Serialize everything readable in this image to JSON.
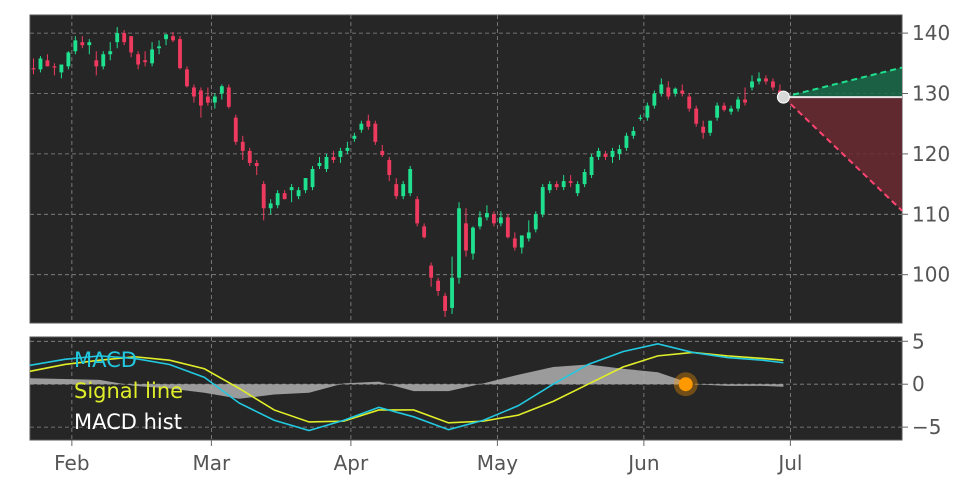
{
  "chart_data": [
    {
      "type": "candlestick",
      "ylim": [
        92,
        143
      ],
      "ytick_values": [
        100,
        110,
        120,
        130,
        140
      ],
      "ytick_labels": [
        "100",
        "110",
        "120",
        "130",
        "140"
      ],
      "xlim": [
        0,
        125
      ],
      "xtick_positions": [
        6,
        26,
        46,
        67,
        88,
        109
      ],
      "xtick_labels": [
        "Feb",
        "Mar",
        "Apr",
        "May",
        "Jun",
        "Jul"
      ],
      "grid": true,
      "colors": {
        "up": "#1fe08e",
        "down": "#ee3a5e",
        "background": "#262626",
        "grid": "#8a8a8a"
      },
      "candles": [
        [
          0,
          134.2,
          135.8,
          133.2,
          134.0
        ],
        [
          1,
          134.0,
          136.2,
          133.5,
          135.8
        ],
        [
          2,
          135.5,
          136.5,
          134.5,
          134.5
        ],
        [
          3,
          134.5,
          135.0,
          133.0,
          134.3
        ],
        [
          4,
          133.5,
          134.8,
          132.5,
          134.8
        ],
        [
          5,
          134.5,
          137.0,
          134.0,
          136.8
        ],
        [
          6,
          137.0,
          139.5,
          136.5,
          138.8
        ],
        [
          7,
          138.5,
          139.5,
          137.5,
          138.0
        ],
        [
          8,
          138.0,
          139.0,
          136.5,
          138.5
        ],
        [
          9,
          135.5,
          137.0,
          133.0,
          134.5
        ],
        [
          10,
          134.5,
          137.0,
          134.0,
          136.5
        ],
        [
          11,
          136.5,
          138.5,
          135.5,
          137.0
        ],
        [
          12,
          138.5,
          141.0,
          137.5,
          140.0
        ],
        [
          13,
          140.0,
          140.5,
          138.0,
          138.5
        ],
        [
          14,
          139.5,
          139.5,
          136.0,
          136.8
        ],
        [
          15,
          136.5,
          137.0,
          134.0,
          134.8
        ],
        [
          16,
          135.5,
          137.0,
          134.5,
          135.2
        ],
        [
          17,
          135.0,
          138.5,
          134.5,
          137.3
        ],
        [
          18,
          137.5,
          138.8,
          136.5,
          137.8
        ],
        [
          19,
          139.0,
          139.8,
          138.0,
          139.8
        ],
        [
          20,
          139.5,
          140.2,
          138.5,
          138.8
        ],
        [
          21,
          139.0,
          139.5,
          134.0,
          134.2
        ],
        [
          22,
          134.0,
          134.5,
          131.0,
          131.2
        ],
        [
          23,
          131.0,
          131.5,
          128.5,
          129.5
        ],
        [
          24,
          130.5,
          131.0,
          126.0,
          128.0
        ],
        [
          25,
          129.5,
          131.0,
          128.0,
          128.5
        ],
        [
          26,
          128.5,
          130.0,
          127.5,
          129.5
        ],
        [
          27,
          130.0,
          131.5,
          129.0,
          131.2
        ],
        [
          28,
          131.0,
          131.5,
          127.5,
          127.8
        ],
        [
          29,
          126.0,
          126.5,
          121.5,
          122.0
        ],
        [
          30,
          122.0,
          123.0,
          119.0,
          120.5
        ],
        [
          31,
          120.5,
          121.0,
          118.0,
          118.5
        ],
        [
          32,
          118.5,
          119.0,
          116.5,
          118.0
        ],
        [
          33,
          115.0,
          115.5,
          109.0,
          111.0
        ],
        [
          34,
          111.0,
          112.5,
          110.0,
          111.8
        ],
        [
          35,
          111.5,
          114.0,
          111.0,
          113.5
        ],
        [
          36,
          113.5,
          114.0,
          112.5,
          112.5
        ],
        [
          37,
          114.0,
          115.0,
          112.0,
          114.5
        ],
        [
          38,
          113.0,
          114.5,
          112.5,
          114.0
        ],
        [
          39,
          114.0,
          116.0,
          113.5,
          116.0
        ],
        [
          40,
          114.5,
          118.0,
          114.0,
          117.5
        ],
        [
          41,
          118.0,
          119.5,
          117.5,
          118.5
        ],
        [
          42,
          117.5,
          120.0,
          117.0,
          119.5
        ],
        [
          43,
          119.5,
          120.5,
          118.5,
          119.0
        ],
        [
          44,
          119.5,
          121.0,
          118.5,
          120.5
        ],
        [
          45,
          120.5,
          122.0,
          120.0,
          121.0
        ],
        [
          46,
          122.5,
          123.5,
          122.0,
          123.0
        ],
        [
          47,
          124.0,
          125.5,
          123.5,
          125.0
        ],
        [
          48,
          125.5,
          126.5,
          124.0,
          124.5
        ],
        [
          49,
          125.0,
          125.5,
          121.5,
          122.0
        ],
        [
          50,
          120.5,
          121.5,
          119.5,
          119.8
        ],
        [
          51,
          119.0,
          119.5,
          115.5,
          116.5
        ],
        [
          52,
          115.0,
          116.0,
          112.5,
          113.0
        ],
        [
          53,
          113.0,
          115.5,
          112.5,
          115.0
        ],
        [
          54,
          113.5,
          118.0,
          113.0,
          117.5
        ],
        [
          55,
          112.5,
          113.0,
          108.0,
          108.5
        ],
        [
          56,
          108.0,
          108.5,
          106.0,
          106.2
        ],
        [
          57,
          101.5,
          102.0,
          98.0,
          99.5
        ],
        [
          58,
          99.0,
          99.5,
          96.5,
          97.3
        ],
        [
          59,
          96.5,
          97.0,
          93.0,
          94.0
        ],
        [
          60,
          94.5,
          103.0,
          93.5,
          99.5
        ],
        [
          61,
          99.5,
          112.0,
          98.5,
          111.0
        ],
        [
          62,
          108.5,
          111.0,
          103.0,
          104.0
        ],
        [
          63,
          103.5,
          108.0,
          102.5,
          107.8
        ],
        [
          64,
          108.0,
          110.5,
          107.5,
          109.5
        ],
        [
          65,
          109.5,
          111.5,
          109.0,
          110.2
        ],
        [
          66,
          110.0,
          110.5,
          108.0,
          108.5
        ],
        [
          67,
          108.5,
          110.5,
          108.0,
          109.5
        ],
        [
          68,
          109.5,
          110.0,
          106.0,
          106.2
        ],
        [
          69,
          106.0,
          107.0,
          104.0,
          104.5
        ],
        [
          70,
          104.5,
          106.5,
          103.5,
          106.5
        ],
        [
          71,
          106.0,
          109.0,
          105.5,
          107.0
        ],
        [
          72,
          107.5,
          110.5,
          107.0,
          110.0
        ],
        [
          73,
          110.0,
          115.0,
          109.5,
          114.5
        ],
        [
          74,
          114.0,
          115.5,
          113.5,
          115.0
        ],
        [
          75,
          115.0,
          115.5,
          114.0,
          114.5
        ],
        [
          76,
          114.5,
          116.5,
          114.0,
          115.5
        ],
        [
          77,
          115.5,
          116.5,
          114.5,
          115.2
        ],
        [
          78,
          113.5,
          115.5,
          113.0,
          115.0
        ],
        [
          79,
          115.0,
          117.5,
          114.5,
          117.0
        ],
        [
          80,
          116.5,
          120.0,
          116.0,
          119.5
        ],
        [
          81,
          119.5,
          121.0,
          119.0,
          120.5
        ],
        [
          82,
          120.0,
          120.5,
          119.0,
          119.5
        ],
        [
          83,
          119.5,
          121.0,
          118.5,
          120.5
        ],
        [
          84,
          120.0,
          121.5,
          119.0,
          120.8
        ],
        [
          85,
          121.0,
          123.5,
          120.5,
          123.0
        ],
        [
          86,
          123.0,
          124.5,
          122.5,
          123.8
        ],
        [
          87,
          126.0,
          126.5,
          125.5,
          126.0
        ],
        [
          88,
          126.0,
          128.5,
          125.5,
          128.0
        ],
        [
          89,
          128.0,
          130.5,
          127.5,
          130.0
        ],
        [
          90,
          130.0,
          132.5,
          129.5,
          131.5
        ],
        [
          91,
          131.0,
          132.0,
          129.0,
          129.5
        ],
        [
          92,
          130.0,
          131.0,
          129.5,
          130.8
        ],
        [
          93,
          130.5,
          131.5,
          129.5,
          130.0
        ],
        [
          94,
          129.5,
          130.0,
          127.0,
          127.5
        ],
        [
          95,
          127.5,
          128.0,
          124.5,
          125.0
        ],
        [
          96,
          124.5,
          125.5,
          122.5,
          123.5
        ],
        [
          97,
          123.5,
          125.5,
          123.0,
          125.5
        ],
        [
          98,
          126.0,
          128.5,
          125.5,
          128.0
        ],
        [
          99,
          128.0,
          128.5,
          127.0,
          127.3
        ],
        [
          100,
          127.0,
          128.0,
          126.5,
          127.5
        ],
        [
          101,
          127.5,
          129.5,
          127.0,
          129.0
        ],
        [
          102,
          129.0,
          131.0,
          128.0,
          128.5
        ],
        [
          103,
          131.0,
          133.0,
          130.5,
          132.0
        ],
        [
          104,
          132.0,
          133.5,
          131.5,
          132.5
        ],
        [
          105,
          132.5,
          133.0,
          131.5,
          132.0
        ],
        [
          106,
          132.0,
          132.5,
          130.5,
          131.0
        ],
        [
          107,
          130.5,
          131.5,
          129.5,
          129.5
        ]
      ],
      "last_point": [
        108,
        129.4
      ],
      "projection_up": [
        [
          108,
          129.4
        ],
        [
          125,
          134.3
        ]
      ],
      "projection_down": [
        [
          108,
          129.4
        ],
        [
          125,
          110.6
        ]
      ]
    },
    {
      "type": "line",
      "ylim": [
        -6.5,
        5.5
      ],
      "ytick_values": [
        5,
        0,
        -5
      ],
      "ytick_labels": [
        "5",
        "0",
        "−5"
      ],
      "xlim": [
        0,
        125
      ],
      "legend": [
        "MACD",
        "Signal line",
        "MACD hist"
      ],
      "legend_placement": "top-left",
      "grid": true,
      "colors": {
        "macd": "#22c8e0",
        "signal": "#e0ee2a",
        "hist": "#a8a8a8",
        "marker": "#ff9900"
      },
      "x": [
        0,
        5,
        10,
        15,
        20,
        25,
        30,
        35,
        40,
        45,
        50,
        55,
        60,
        65,
        70,
        75,
        80,
        85,
        90,
        95,
        100,
        105,
        108
      ],
      "series": [
        {
          "name": "MACD",
          "values": [
            2.2,
            2.9,
            3.3,
            3.0,
            2.3,
            0.8,
            -2.2,
            -4.2,
            -5.4,
            -4.2,
            -2.7,
            -3.8,
            -5.3,
            -4.2,
            -2.5,
            0.0,
            2.3,
            3.8,
            4.7,
            3.7,
            3.1,
            2.8,
            2.5
          ]
        },
        {
          "name": "Signal line",
          "values": [
            1.5,
            2.3,
            2.8,
            3.2,
            2.8,
            1.8,
            -0.5,
            -3.0,
            -4.4,
            -4.3,
            -3.0,
            -3.0,
            -4.5,
            -4.3,
            -3.6,
            -2.0,
            0.0,
            2.0,
            3.3,
            3.7,
            3.3,
            3.0,
            2.8
          ]
        },
        {
          "name": "MACD hist",
          "values": [
            0.7,
            0.6,
            0.5,
            -0.2,
            -0.5,
            -1.0,
            -1.7,
            -1.2,
            -1.0,
            0.1,
            0.3,
            -0.8,
            -0.8,
            0.1,
            1.1,
            2.0,
            2.3,
            1.8,
            1.4,
            0.0,
            -0.2,
            -0.2,
            -0.3
          ]
        }
      ],
      "marker": [
        94,
        0.0
      ]
    }
  ]
}
